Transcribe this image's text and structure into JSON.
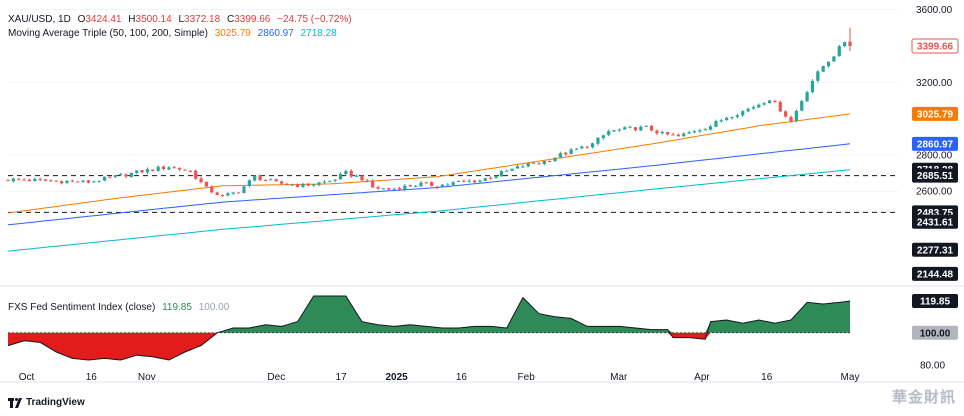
{
  "header": {
    "symbol": "XAU/USD, 1D",
    "open_label": "O",
    "open": "3424.41",
    "high_label": "H",
    "high": "3500.14",
    "low_label": "L",
    "low": "3372.18",
    "close_label": "C",
    "close": "3399.66",
    "change": "−24.75 (−0.72%)",
    "ma_title": "Moving Average Triple (50, 100, 200, Simple)",
    "ma50": "3025.79",
    "ma100": "2860.97",
    "ma200": "2718.28"
  },
  "sub_header": {
    "title": "FXS Fed Sentiment Index (close)",
    "value": "119.85",
    "base": "100.00"
  },
  "footer": {
    "brand": "TradingView"
  },
  "colors": {
    "up": "#26a69a",
    "down": "#ef5350",
    "ma50": "#f57c00",
    "ma100": "#2962ff",
    "ma200": "#00bcd4",
    "sentiment_above": "#2e8b57",
    "sentiment_below": "#e21b1b"
  },
  "chart_data": [
    {
      "type": "candlestick",
      "title": "XAU/USD, 1D",
      "ylim": [
        2100,
        3620
      ],
      "price_axis_ticks": [
        "3600.00",
        "3200.00",
        "2800.00",
        "2600.00"
      ],
      "time_axis_labels": [
        "Oct",
        "16",
        "Nov",
        "Dec",
        "17",
        "2025",
        "16",
        "Feb",
        "Mar",
        "Apr",
        "16",
        "May"
      ],
      "horizontal_levels": [
        2685.51,
        2483.75
      ],
      "price_labels": [
        {
          "text": "3399.66",
          "value": 3399.66,
          "style": "close"
        },
        {
          "text": "3025.79",
          "value": 3025.79,
          "style": "ma50"
        },
        {
          "text": "2860.97",
          "value": 2860.97,
          "style": "ma100"
        },
        {
          "text": "2718.28",
          "value": 2718.28,
          "style": "ma200"
        },
        {
          "text": "2685.51",
          "value": 2685.51,
          "style": "level"
        },
        {
          "text": "2483.75",
          "value": 2483.75,
          "style": "level"
        },
        {
          "text": "2431.61",
          "value": 2431.61,
          "style": "level"
        },
        {
          "text": "2277.31",
          "value": 2277.31,
          "style": "level"
        },
        {
          "text": "2144.48",
          "value": 2144.48,
          "style": "level"
        }
      ],
      "close_path": [
        [
          0,
          2665
        ],
        [
          5,
          2660
        ],
        [
          10,
          2655
        ],
        [
          15,
          2650
        ],
        [
          20,
          2680
        ],
        [
          25,
          2710
        ],
        [
          30,
          2735
        ],
        [
          34,
          2710
        ],
        [
          37,
          2615
        ],
        [
          40,
          2570
        ],
        [
          43,
          2600
        ],
        [
          46,
          2680
        ],
        [
          50,
          2645
        ],
        [
          55,
          2630
        ],
        [
          60,
          2655
        ],
        [
          63,
          2700
        ],
        [
          66,
          2670
        ],
        [
          68,
          2620
        ],
        [
          71,
          2610
        ],
        [
          74,
          2625
        ],
        [
          77,
          2640
        ],
        [
          80,
          2630
        ],
        [
          84,
          2650
        ],
        [
          88,
          2660
        ],
        [
          92,
          2700
        ],
        [
          96,
          2740
        ],
        [
          100,
          2765
        ],
        [
          103,
          2800
        ],
        [
          106,
          2830
        ],
        [
          109,
          2860
        ],
        [
          112,
          2930
        ],
        [
          116,
          2945
        ],
        [
          119,
          2950
        ],
        [
          122,
          2915
        ],
        [
          125,
          2900
        ],
        [
          128,
          2935
        ],
        [
          131,
          2960
        ],
        [
          134,
          3010
        ],
        [
          137,
          3040
        ],
        [
          140,
          3080
        ],
        [
          142,
          3110
        ],
        [
          144,
          3050
        ],
        [
          146,
          2985
        ],
        [
          148,
          3100
        ],
        [
          150,
          3210
        ],
        [
          152,
          3290
        ],
        [
          154,
          3350
        ],
        [
          156,
          3425
        ],
        [
          157,
          3400
        ]
      ],
      "moving_averages": [
        {
          "name": "SMA 50",
          "value": 3025.79,
          "points": [
            [
              0,
              2480
            ],
            [
              20,
              2560
            ],
            [
              40,
              2630
            ],
            [
              60,
              2640
            ],
            [
              80,
              2680
            ],
            [
              100,
              2770
            ],
            [
              120,
              2860
            ],
            [
              140,
              2960
            ],
            [
              157,
              3025.79
            ]
          ]
        },
        {
          "name": "SMA 100",
          "value": 2860.97,
          "points": [
            [
              0,
              2415
            ],
            [
              40,
              2540
            ],
            [
              80,
              2620
            ],
            [
              120,
              2740
            ],
            [
              157,
              2860.97
            ]
          ]
        },
        {
          "name": "SMA 200",
          "value": 2718.28,
          "points": [
            [
              0,
              2270
            ],
            [
              40,
              2390
            ],
            [
              80,
              2490
            ],
            [
              120,
              2610
            ],
            [
              157,
              2718.28
            ]
          ]
        }
      ]
    },
    {
      "type": "area",
      "title": "FXS Fed Sentiment Index (close)",
      "ylim": [
        78,
        128
      ],
      "baseline": 100,
      "price_axis_ticks": [
        "80.00"
      ],
      "last_value": 119.85,
      "points": [
        [
          0,
          92
        ],
        [
          3,
          95
        ],
        [
          6,
          94
        ],
        [
          9,
          88
        ],
        [
          12,
          84
        ],
        [
          15,
          83
        ],
        [
          18,
          84
        ],
        [
          21,
          83
        ],
        [
          24,
          86
        ],
        [
          27,
          85
        ],
        [
          30,
          83
        ],
        [
          33,
          88
        ],
        [
          36,
          92
        ],
        [
          39,
          100
        ],
        [
          42,
          103
        ],
        [
          45,
          103
        ],
        [
          48,
          105
        ],
        [
          51,
          104
        ],
        [
          54,
          107
        ],
        [
          57,
          123
        ],
        [
          60,
          123
        ],
        [
          63,
          123
        ],
        [
          66,
          107
        ],
        [
          69,
          105
        ],
        [
          72,
          104
        ],
        [
          75,
          105
        ],
        [
          78,
          104
        ],
        [
          81,
          103
        ],
        [
          84,
          103
        ],
        [
          87,
          104
        ],
        [
          90,
          104
        ],
        [
          93,
          103
        ],
        [
          96,
          122
        ],
        [
          99,
          112
        ],
        [
          102,
          110
        ],
        [
          105,
          109
        ],
        [
          108,
          104
        ],
        [
          111,
          104
        ],
        [
          114,
          104
        ],
        [
          117,
          103
        ],
        [
          120,
          102
        ],
        [
          123,
          102
        ],
        [
          124,
          97
        ],
        [
          127,
          97
        ],
        [
          130,
          96
        ],
        [
          131,
          107
        ],
        [
          134,
          108
        ],
        [
          137,
          106
        ],
        [
          140,
          108
        ],
        [
          143,
          106
        ],
        [
          146,
          108
        ],
        [
          149,
          119
        ],
        [
          152,
          118
        ],
        [
          155,
          119
        ],
        [
          157,
          119.85
        ]
      ]
    }
  ]
}
